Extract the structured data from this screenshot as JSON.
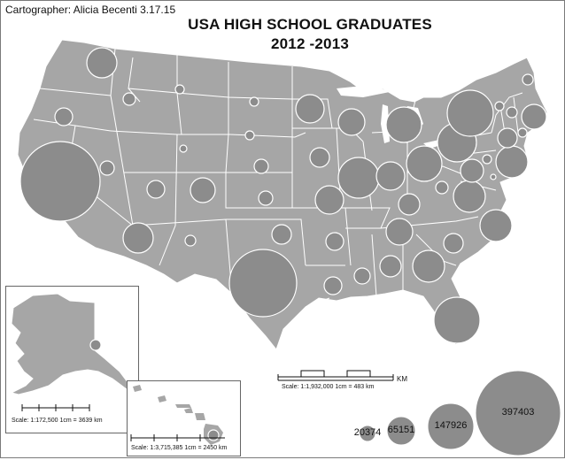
{
  "credit": "Cartographer: Alicia Becenti 3.17.15",
  "title": {
    "line1": "USA HIGH SCHOOL GRADUATES",
    "line2": "2012 -2013"
  },
  "scales": {
    "main": {
      "label": "Scale: 1:1,932,000   1cm = 483 km",
      "unit": "KM"
    },
    "alaska": {
      "label": "Scale: 1:172,500  1cm = 3639 km"
    },
    "hawaii": {
      "label": "Scale: 1:3,715,385  1cm = 2450 km"
    }
  },
  "legend": {
    "values": [
      "20374",
      "65151",
      "147926",
      "397403"
    ]
  },
  "colors": {
    "land": "#a6a6a6",
    "borders": "#ffffff",
    "symbol_fill": "#8c8c8c",
    "symbol_stroke": "#ffffff",
    "background": "#ffffff"
  }
}
